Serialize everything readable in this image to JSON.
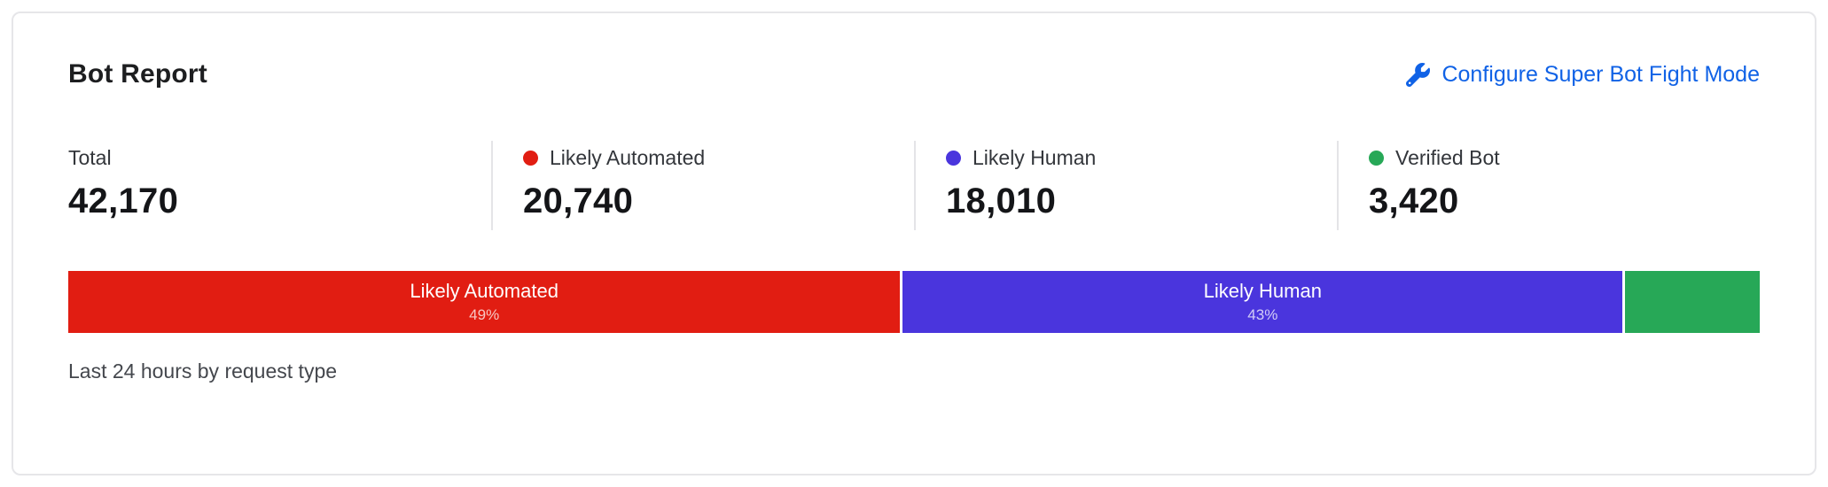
{
  "card": {
    "title": "Bot Report",
    "configure_link_label": "Configure Super Bot Fight Mode",
    "caption": "Last 24 hours by request type"
  },
  "colors": {
    "link": "#1062e6",
    "likely_automated": "#e11d12",
    "likely_human": "#4a35dd",
    "verified_bot": "#27a857",
    "card_border": "#e6e6e9"
  },
  "stats": [
    {
      "label": "Total",
      "value": "42,170"
    },
    {
      "label": "Likely Automated",
      "value": "20,740",
      "dot_color": "#e11d12"
    },
    {
      "label": "Likely Human",
      "value": "18,010",
      "dot_color": "#4a35dd"
    },
    {
      "label": "Verified Bot",
      "value": "3,420",
      "dot_color": "#27a857"
    }
  ],
  "chart_data": {
    "type": "bar",
    "stacked": true,
    "title": "Bot Report",
    "caption": "Last 24 hours by request type",
    "total": 42170,
    "segments": [
      {
        "name": "Likely Automated",
        "value": 20740,
        "percent_label": "49%",
        "color": "#e11d12",
        "show_label": true
      },
      {
        "name": "Likely Human",
        "value": 18010,
        "percent_label": "43%",
        "color": "#4a35dd",
        "show_label": true
      },
      {
        "name": "Verified Bot",
        "value": 3420,
        "percent_label": "",
        "color": "#27a857",
        "show_label": false
      }
    ]
  }
}
